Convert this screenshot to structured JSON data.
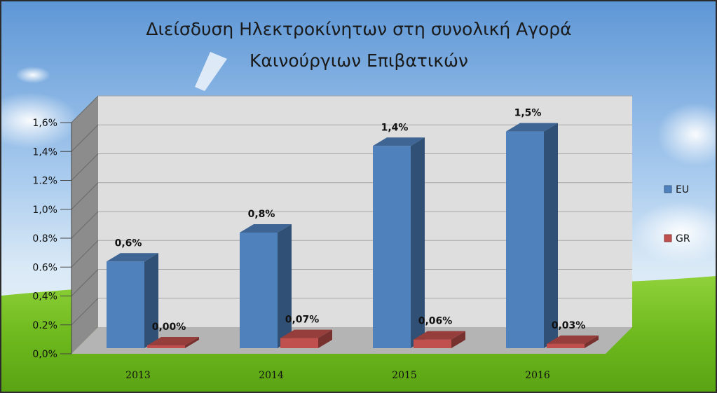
{
  "chart_data": {
    "type": "bar",
    "title": [
      "Διείσδυση Ηλεκτροκίνητων στη συνολική Αγορά",
      "Καινούργιων Επιβατικών"
    ],
    "categories": [
      "2013",
      "2014",
      "2015",
      "2016"
    ],
    "series": [
      {
        "name": "EU",
        "values": [
          0.6,
          0.8,
          1.4,
          1.5
        ],
        "labels": [
          "0,6%",
          "0,8%",
          "1,4%",
          "1,5%"
        ],
        "color": "#4f81bd"
      },
      {
        "name": "GR",
        "values": [
          0.0,
          0.07,
          0.06,
          0.03
        ],
        "labels": [
          "0,00%",
          "0,07%",
          "0,06%",
          "0,03%"
        ],
        "color": "#c0504d"
      }
    ],
    "ylim": [
      0,
      1.6
    ],
    "yticks": [
      "0,0%",
      "0.2%",
      "0,4%",
      "0.6%",
      "0.8%",
      "1,0%",
      "1.2%",
      "1,4%",
      "1,6%"
    ],
    "grid": true,
    "legend_position": "right",
    "style": "3d-clustered-column"
  }
}
